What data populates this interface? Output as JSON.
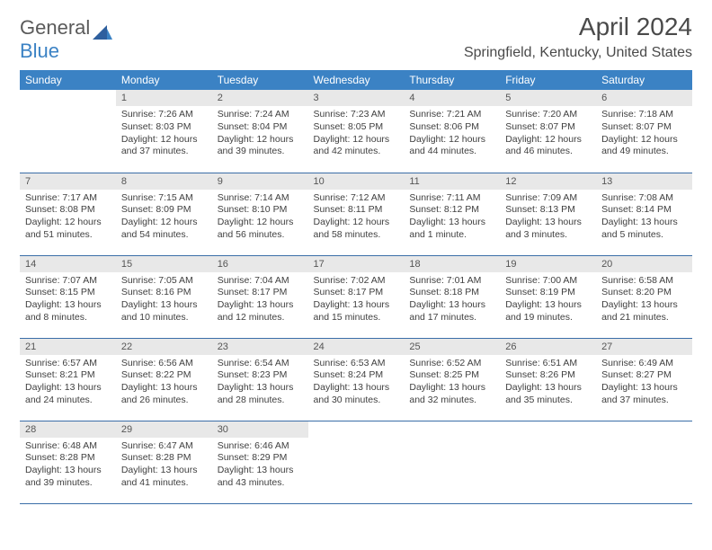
{
  "brand": {
    "part1": "General",
    "part2": "Blue"
  },
  "title": "April 2024",
  "location": "Springfield, Kentucky, United States",
  "weekdays": [
    "Sunday",
    "Monday",
    "Tuesday",
    "Wednesday",
    "Thursday",
    "Friday",
    "Saturday"
  ],
  "colors": {
    "header_bg": "#3b82c4",
    "header_text": "#ffffff",
    "daynum_bg": "#e8e8e8",
    "row_border": "#3b6ea8",
    "text": "#404040"
  },
  "weeks": [
    [
      {
        "n": "",
        "empty": true
      },
      {
        "n": "1",
        "sr": "Sunrise: 7:26 AM",
        "ss": "Sunset: 8:03 PM",
        "d1": "Daylight: 12 hours",
        "d2": "and 37 minutes."
      },
      {
        "n": "2",
        "sr": "Sunrise: 7:24 AM",
        "ss": "Sunset: 8:04 PM",
        "d1": "Daylight: 12 hours",
        "d2": "and 39 minutes."
      },
      {
        "n": "3",
        "sr": "Sunrise: 7:23 AM",
        "ss": "Sunset: 8:05 PM",
        "d1": "Daylight: 12 hours",
        "d2": "and 42 minutes."
      },
      {
        "n": "4",
        "sr": "Sunrise: 7:21 AM",
        "ss": "Sunset: 8:06 PM",
        "d1": "Daylight: 12 hours",
        "d2": "and 44 minutes."
      },
      {
        "n": "5",
        "sr": "Sunrise: 7:20 AM",
        "ss": "Sunset: 8:07 PM",
        "d1": "Daylight: 12 hours",
        "d2": "and 46 minutes."
      },
      {
        "n": "6",
        "sr": "Sunrise: 7:18 AM",
        "ss": "Sunset: 8:07 PM",
        "d1": "Daylight: 12 hours",
        "d2": "and 49 minutes."
      }
    ],
    [
      {
        "n": "7",
        "sr": "Sunrise: 7:17 AM",
        "ss": "Sunset: 8:08 PM",
        "d1": "Daylight: 12 hours",
        "d2": "and 51 minutes."
      },
      {
        "n": "8",
        "sr": "Sunrise: 7:15 AM",
        "ss": "Sunset: 8:09 PM",
        "d1": "Daylight: 12 hours",
        "d2": "and 54 minutes."
      },
      {
        "n": "9",
        "sr": "Sunrise: 7:14 AM",
        "ss": "Sunset: 8:10 PM",
        "d1": "Daylight: 12 hours",
        "d2": "and 56 minutes."
      },
      {
        "n": "10",
        "sr": "Sunrise: 7:12 AM",
        "ss": "Sunset: 8:11 PM",
        "d1": "Daylight: 12 hours",
        "d2": "and 58 minutes."
      },
      {
        "n": "11",
        "sr": "Sunrise: 7:11 AM",
        "ss": "Sunset: 8:12 PM",
        "d1": "Daylight: 13 hours",
        "d2": "and 1 minute."
      },
      {
        "n": "12",
        "sr": "Sunrise: 7:09 AM",
        "ss": "Sunset: 8:13 PM",
        "d1": "Daylight: 13 hours",
        "d2": "and 3 minutes."
      },
      {
        "n": "13",
        "sr": "Sunrise: 7:08 AM",
        "ss": "Sunset: 8:14 PM",
        "d1": "Daylight: 13 hours",
        "d2": "and 5 minutes."
      }
    ],
    [
      {
        "n": "14",
        "sr": "Sunrise: 7:07 AM",
        "ss": "Sunset: 8:15 PM",
        "d1": "Daylight: 13 hours",
        "d2": "and 8 minutes."
      },
      {
        "n": "15",
        "sr": "Sunrise: 7:05 AM",
        "ss": "Sunset: 8:16 PM",
        "d1": "Daylight: 13 hours",
        "d2": "and 10 minutes."
      },
      {
        "n": "16",
        "sr": "Sunrise: 7:04 AM",
        "ss": "Sunset: 8:17 PM",
        "d1": "Daylight: 13 hours",
        "d2": "and 12 minutes."
      },
      {
        "n": "17",
        "sr": "Sunrise: 7:02 AM",
        "ss": "Sunset: 8:17 PM",
        "d1": "Daylight: 13 hours",
        "d2": "and 15 minutes."
      },
      {
        "n": "18",
        "sr": "Sunrise: 7:01 AM",
        "ss": "Sunset: 8:18 PM",
        "d1": "Daylight: 13 hours",
        "d2": "and 17 minutes."
      },
      {
        "n": "19",
        "sr": "Sunrise: 7:00 AM",
        "ss": "Sunset: 8:19 PM",
        "d1": "Daylight: 13 hours",
        "d2": "and 19 minutes."
      },
      {
        "n": "20",
        "sr": "Sunrise: 6:58 AM",
        "ss": "Sunset: 8:20 PM",
        "d1": "Daylight: 13 hours",
        "d2": "and 21 minutes."
      }
    ],
    [
      {
        "n": "21",
        "sr": "Sunrise: 6:57 AM",
        "ss": "Sunset: 8:21 PM",
        "d1": "Daylight: 13 hours",
        "d2": "and 24 minutes."
      },
      {
        "n": "22",
        "sr": "Sunrise: 6:56 AM",
        "ss": "Sunset: 8:22 PM",
        "d1": "Daylight: 13 hours",
        "d2": "and 26 minutes."
      },
      {
        "n": "23",
        "sr": "Sunrise: 6:54 AM",
        "ss": "Sunset: 8:23 PM",
        "d1": "Daylight: 13 hours",
        "d2": "and 28 minutes."
      },
      {
        "n": "24",
        "sr": "Sunrise: 6:53 AM",
        "ss": "Sunset: 8:24 PM",
        "d1": "Daylight: 13 hours",
        "d2": "and 30 minutes."
      },
      {
        "n": "25",
        "sr": "Sunrise: 6:52 AM",
        "ss": "Sunset: 8:25 PM",
        "d1": "Daylight: 13 hours",
        "d2": "and 32 minutes."
      },
      {
        "n": "26",
        "sr": "Sunrise: 6:51 AM",
        "ss": "Sunset: 8:26 PM",
        "d1": "Daylight: 13 hours",
        "d2": "and 35 minutes."
      },
      {
        "n": "27",
        "sr": "Sunrise: 6:49 AM",
        "ss": "Sunset: 8:27 PM",
        "d1": "Daylight: 13 hours",
        "d2": "and 37 minutes."
      }
    ],
    [
      {
        "n": "28",
        "sr": "Sunrise: 6:48 AM",
        "ss": "Sunset: 8:28 PM",
        "d1": "Daylight: 13 hours",
        "d2": "and 39 minutes."
      },
      {
        "n": "29",
        "sr": "Sunrise: 6:47 AM",
        "ss": "Sunset: 8:28 PM",
        "d1": "Daylight: 13 hours",
        "d2": "and 41 minutes."
      },
      {
        "n": "30",
        "sr": "Sunrise: 6:46 AM",
        "ss": "Sunset: 8:29 PM",
        "d1": "Daylight: 13 hours",
        "d2": "and 43 minutes."
      },
      {
        "n": "",
        "empty": true
      },
      {
        "n": "",
        "empty": true
      },
      {
        "n": "",
        "empty": true
      },
      {
        "n": "",
        "empty": true
      }
    ]
  ]
}
